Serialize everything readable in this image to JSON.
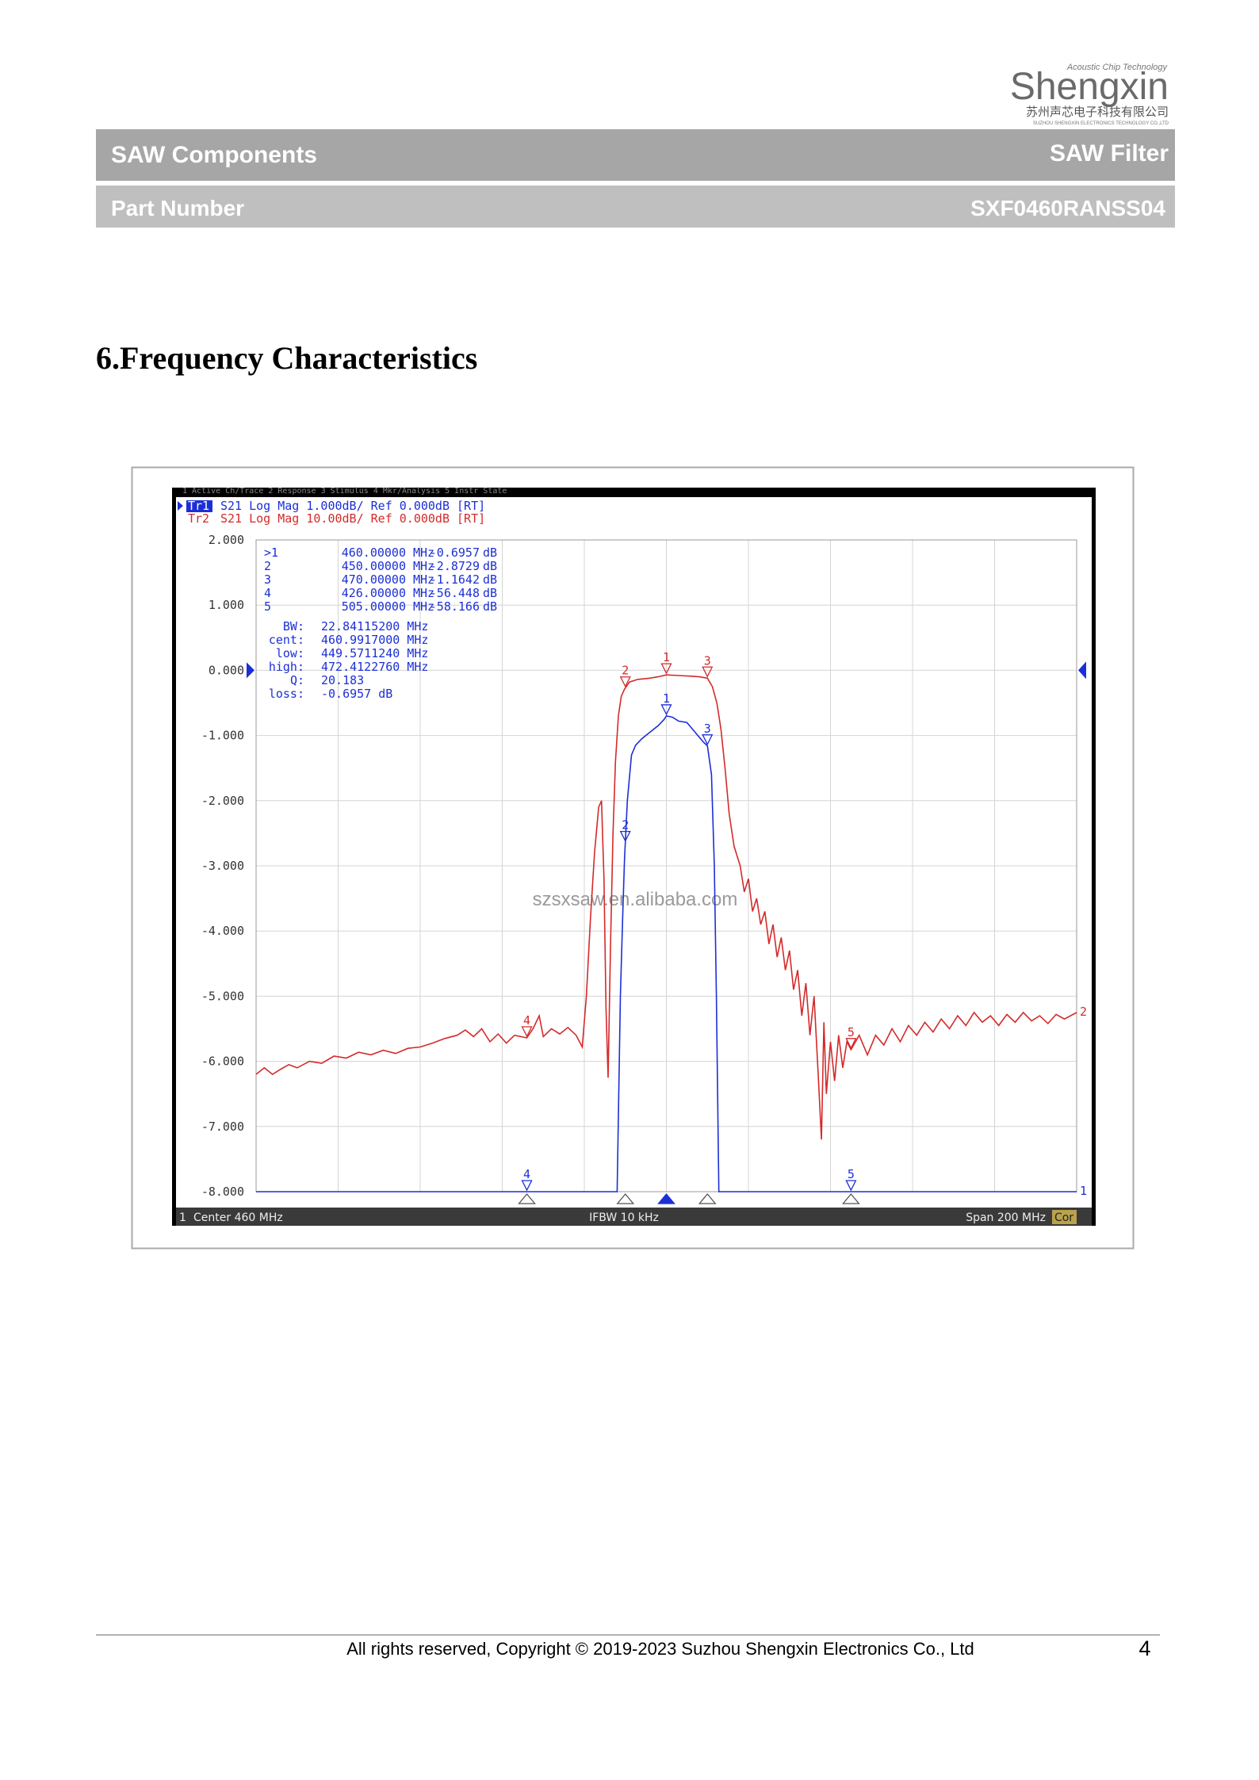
{
  "header": {
    "logo": {
      "tagline": "Acoustic Chip Technology",
      "name": "Shengxin",
      "chinese": "苏州声芯电子科技有限公司",
      "english": "SUZHOU SHENGXIN ELECTRONICS TECHNOLOGY CO.,LTD"
    },
    "band1": {
      "left": "SAW Components",
      "right": "SAW Filter"
    },
    "band2": {
      "left": "Part Number",
      "right": "SXF0460RANSS04"
    }
  },
  "section_title": "6.Frequency Characteristics",
  "chart_data": {
    "type": "line",
    "menu": "1 Active Ch/Trace   2 Response   3 Stimulus   4 Mkr/Analysis   5 Instr State",
    "xlim": [
      360,
      560
    ],
    "ylim": [
      -8,
      2
    ],
    "yticks": [
      {
        "value": 2,
        "label": "2.000"
      },
      {
        "value": 1,
        "label": "1.000"
      },
      {
        "value": 0,
        "label": "0.000"
      },
      {
        "value": -1,
        "label": "-1.000"
      },
      {
        "value": -2,
        "label": "-2.000"
      },
      {
        "value": -3,
        "label": "-3.000"
      },
      {
        "value": -4,
        "label": "-4.000"
      },
      {
        "value": -5,
        "label": "-5.000"
      },
      {
        "value": -6,
        "label": "-6.000"
      },
      {
        "value": -7,
        "label": "-7.000"
      },
      {
        "value": -8,
        "label": "-8.000"
      }
    ],
    "grid": true,
    "series": [
      {
        "name": "Tr1",
        "label": "S21 Log Mag 1.000dB/ Ref 0.000dB [RT]",
        "color": "#1c2fd6",
        "end_label": "1",
        "x": [
          360,
          448,
          448.8,
          449.4,
          449.8,
          450.5,
          451.5,
          452.5,
          454,
          456,
          458,
          459.5,
          460,
          461.5,
          463,
          465,
          467,
          469,
          470,
          471,
          471.7,
          472.2,
          472.8,
          560
        ],
        "values": [
          -8,
          -8,
          -5.0,
          -3.7,
          -2.9,
          -2.0,
          -1.3,
          -1.15,
          -1.05,
          -0.95,
          -0.85,
          -0.75,
          -0.7,
          -0.72,
          -0.78,
          -0.8,
          -0.95,
          -1.1,
          -1.16,
          -1.6,
          -3.0,
          -5.0,
          -8,
          -8
        ]
      },
      {
        "name": "Tr2",
        "label": "S21 Log Mag 10.00dB/ Ref 0.000dB [RT]",
        "color": "#d42a2a",
        "end_label": "2",
        "x": [
          360,
          362,
          364,
          366,
          368,
          370,
          373,
          376,
          379,
          382,
          385,
          388,
          391,
          394,
          397,
          400,
          403,
          406,
          409,
          411,
          413,
          415,
          417,
          419,
          421,
          423,
          426,
          427.5,
          429,
          430,
          432,
          434,
          436,
          438,
          439.5,
          440.5,
          441.5,
          442.5,
          443.5,
          444.2,
          444.8,
          445.3,
          445.8,
          446.4,
          447,
          447.6,
          448.3,
          449,
          449.8,
          451,
          453,
          456,
          458,
          460,
          463,
          466,
          468,
          470,
          471.2,
          472.3,
          473.3,
          474.3,
          475.3,
          476.5,
          478,
          479,
          480,
          481,
          482,
          483,
          484,
          485,
          486,
          487,
          488,
          489,
          490,
          491,
          492,
          493,
          494,
          495,
          496,
          497,
          497.8,
          498.4,
          499,
          500,
          501,
          502,
          503,
          504,
          505,
          507,
          509,
          511,
          513,
          515,
          517,
          519,
          521,
          523,
          525,
          527,
          529,
          531,
          533,
          535,
          537,
          539,
          541,
          543,
          545,
          547,
          549,
          551,
          553,
          555,
          557,
          560
        ],
        "values": [
          -6.2,
          -6.1,
          -6.2,
          -6.12,
          -6.05,
          -6.1,
          -6.0,
          -6.03,
          -5.92,
          -5.95,
          -5.86,
          -5.9,
          -5.83,
          -5.88,
          -5.8,
          -5.78,
          -5.72,
          -5.65,
          -5.6,
          -5.52,
          -5.62,
          -5.5,
          -5.7,
          -5.58,
          -5.72,
          -5.6,
          -5.64,
          -5.5,
          -5.3,
          -5.62,
          -5.5,
          -5.58,
          -5.48,
          -5.6,
          -5.78,
          -5.0,
          -3.8,
          -2.8,
          -2.1,
          -2.0,
          -3.2,
          -5.2,
          -6.25,
          -4.2,
          -2.5,
          -1.4,
          -0.7,
          -0.4,
          -0.29,
          -0.18,
          -0.14,
          -0.12,
          -0.1,
          -0.07,
          -0.08,
          -0.09,
          -0.1,
          -0.12,
          -0.25,
          -0.5,
          -0.9,
          -1.5,
          -2.2,
          -2.7,
          -3.0,
          -3.4,
          -3.2,
          -3.7,
          -3.5,
          -3.9,
          -3.7,
          -4.2,
          -3.9,
          -4.4,
          -4.1,
          -4.6,
          -4.3,
          -4.9,
          -4.6,
          -5.3,
          -4.8,
          -5.6,
          -5.0,
          -6.2,
          -7.2,
          -5.4,
          -6.5,
          -5.7,
          -6.3,
          -5.6,
          -6.1,
          -5.7,
          -5.82,
          -5.6,
          -5.9,
          -5.6,
          -5.75,
          -5.5,
          -5.7,
          -5.45,
          -5.6,
          -5.4,
          -5.55,
          -5.35,
          -5.5,
          -5.3,
          -5.45,
          -5.25,
          -5.4,
          -5.3,
          -5.45,
          -5.28,
          -5.4,
          -5.25,
          -5.38,
          -5.3,
          -5.42,
          -5.28,
          -5.35,
          -5.25
        ]
      }
    ],
    "markers": [
      {
        "label": ">1",
        "tag": "1",
        "freq": "460.00000",
        "unit": "MHz",
        "value": "-0.6957",
        "vunit": "dB"
      },
      {
        "label": "2",
        "tag": "2",
        "freq": "450.00000",
        "unit": "MHz",
        "value": "-2.8729",
        "vunit": "dB"
      },
      {
        "label": "3",
        "tag": "3",
        "freq": "470.00000",
        "unit": "MHz",
        "value": "-1.1642",
        "vunit": "dB"
      },
      {
        "label": "4",
        "tag": "4",
        "freq": "426.00000",
        "unit": "MHz",
        "value": "-56.448",
        "vunit": "dB"
      },
      {
        "label": "5",
        "tag": "5",
        "freq": "505.00000",
        "unit": "MHz",
        "value": "-58.166",
        "vunit": "dB"
      }
    ],
    "stats": [
      {
        "key": "BW:",
        "value": "22.84115200 MHz"
      },
      {
        "key": "cent:",
        "value": "460.9917000 MHz"
      },
      {
        "key": "low:",
        "value": "449.5711240 MHz"
      },
      {
        "key": "high:",
        "value": "472.4122760 MHz"
      },
      {
        "key": "Q:",
        "value": "20.183"
      },
      {
        "key": "loss:",
        "value": "-0.6957 dB"
      }
    ],
    "watermark": "szsxsaw.en.alibaba.com",
    "status": {
      "channel": "1",
      "center": "Center 460 MHz",
      "ifbw": "IFBW 10 kHz",
      "span": "Span 200 MHz",
      "cor": "Cor"
    }
  },
  "footer": {
    "copyright": "All rights reserved, Copyright © 2019-2023 Suzhou Shengxin Electronics Co., Ltd",
    "page": "4"
  }
}
